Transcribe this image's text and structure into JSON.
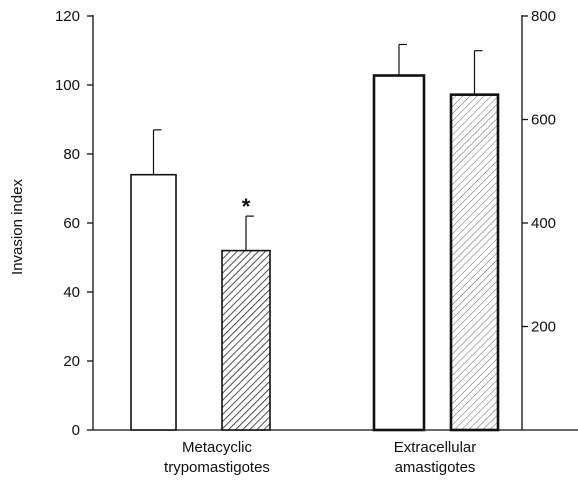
{
  "chart_data": {
    "type": "bar",
    "title": "",
    "ylabel": "Invasion index",
    "ylim": [
      0,
      120
    ],
    "yticks": [
      0,
      20,
      40,
      60,
      80,
      100,
      120
    ],
    "y2lim": [
      0,
      800
    ],
    "y2ticks": [
      200,
      400,
      600,
      800
    ],
    "groups": [
      {
        "label_lines": [
          "Metacyclic",
          "trypomastigotes"
        ],
        "axis": "left",
        "bars": [
          {
            "fill": "white",
            "value": 74,
            "error": 13
          },
          {
            "fill": "hatched",
            "value": 52,
            "error": 10,
            "annotation": "*"
          }
        ]
      },
      {
        "label_lines": [
          "Extracellular",
          "amastigotes"
        ],
        "axis": "right",
        "bars": [
          {
            "fill": "white",
            "value": 685,
            "error": 60
          },
          {
            "fill": "hatched-light",
            "value": 648,
            "error": 85
          }
        ]
      }
    ],
    "grid": false,
    "legend": "none"
  }
}
